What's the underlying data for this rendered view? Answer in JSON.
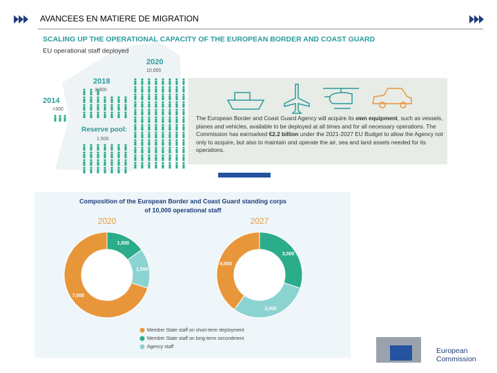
{
  "header": {
    "title": "AVANCEES EN MATIERE DE MIGRATION"
  },
  "infographic": {
    "title": "SCALING UP THE OPERATIONAL CAPACITY OF THE EUROPEAN BORDER AND COAST GUARD",
    "subtitle": "EU operational staff deployed",
    "milestones": [
      {
        "year": "2020",
        "staff": "10,000"
      },
      {
        "year": "2018",
        "staff": "3,300"
      },
      {
        "year": "2014",
        "staff": "<300"
      },
      {
        "year": "Reserve pool:",
        "staff": "1,500"
      }
    ],
    "paragraph": [
      "The European Border and Coast Guard Agency will acquire its ",
      "own equipment",
      ", such as vessels, planes and vehicles, available to be deployed at all times and for all necessary operations. The Commission has earmarked ",
      "€2.2 billion",
      " under the 2021-2027 EU Budget to allow the Agency not only to acquire, but also to maintain and operate the air, sea and land assets needed for its operations."
    ]
  },
  "composition": {
    "title": [
      "Composition of the European Border and Coast Guard standing corps",
      "of 10,000 operational staff"
    ],
    "legend": {
      "categories": [
        "Member State staff on short-term deployment",
        "Member State staff on long-term secondment",
        "Agency staff"
      ],
      "colors": [
        "#e8963a",
        "#2bac8a",
        "#8bd3d0"
      ]
    }
  },
  "chart_data": [
    {
      "type": "pie",
      "title": "2020",
      "values": [
        7000,
        1500,
        1500
      ],
      "value_labels": [
        "7,000",
        "1,500",
        "1,500"
      ]
    },
    {
      "type": "pie",
      "title": "2027",
      "values": [
        4000,
        3000,
        3000
      ],
      "value_labels": [
        "4,000",
        "3,000",
        "3,000"
      ]
    }
  ],
  "logo": {
    "lines": [
      "European",
      "Commission"
    ]
  }
}
